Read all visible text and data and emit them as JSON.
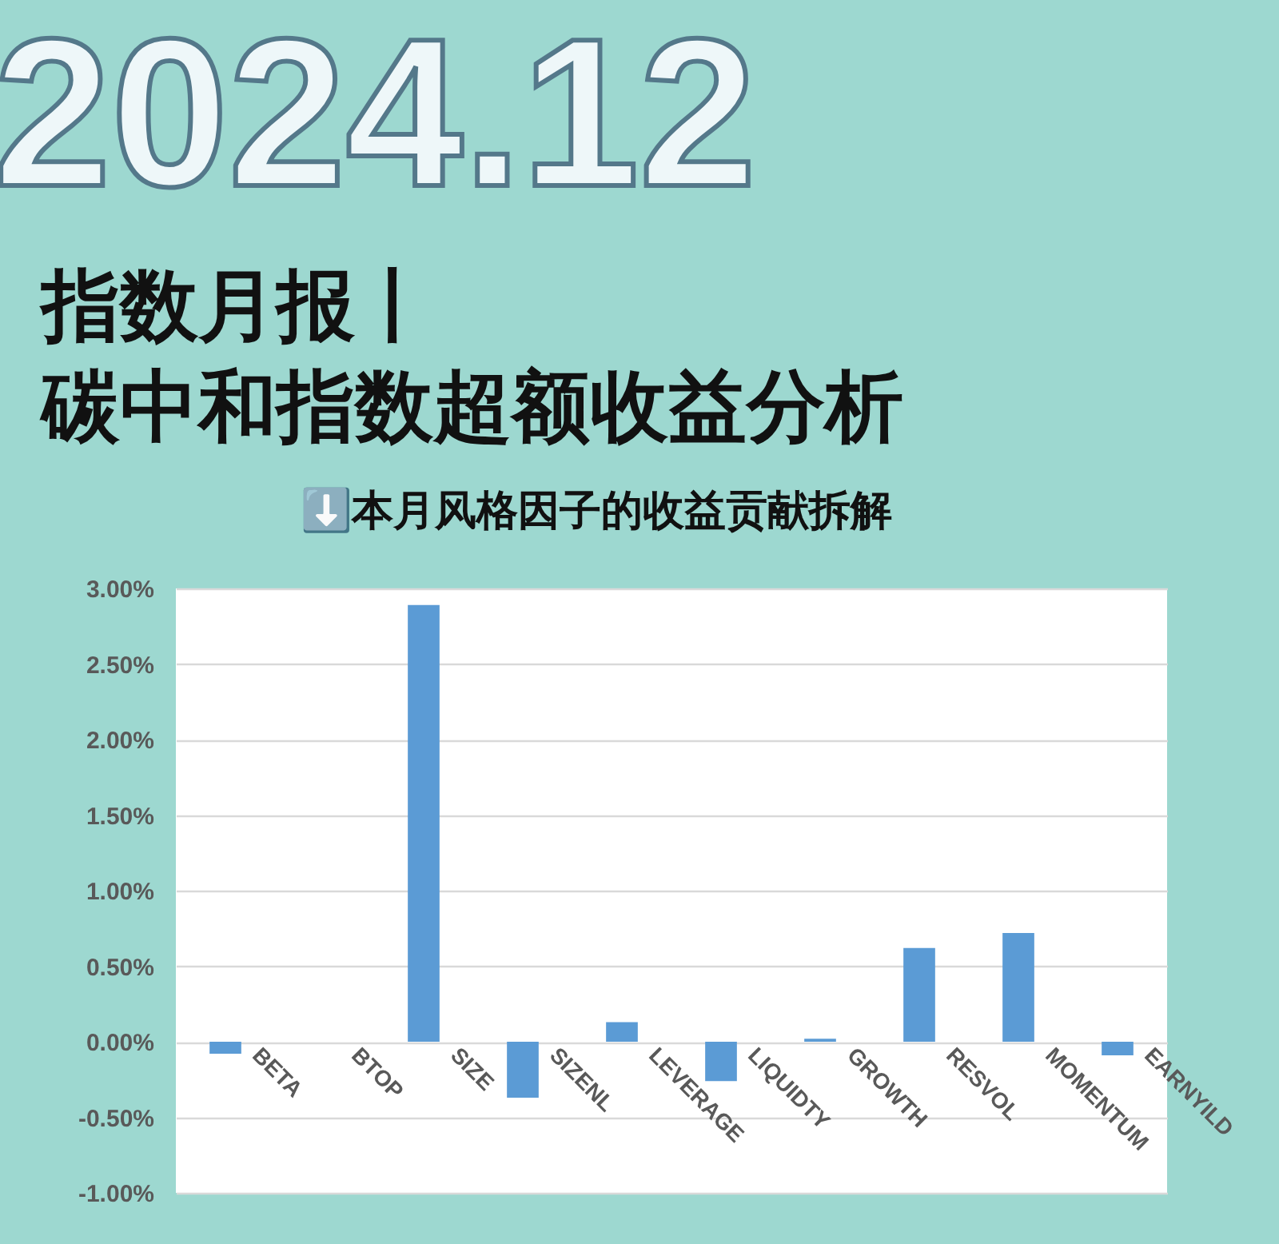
{
  "chart_data": {
    "type": "bar",
    "title": [
      "指数月报丨",
      "碳中和指数超额收益分析"
    ],
    "subtitle": "⬇️本月风格因子的收益贡献拆解",
    "annotations": [
      "2024.12"
    ],
    "categories": [
      "BETA",
      "BTOP",
      "SIZE",
      "SIZENL",
      "LEVERAGE",
      "LIQUIDTY",
      "GROWTH",
      "RESVOL",
      "MOMENTUM",
      "EARNYILD"
    ],
    "values": [
      -0.08,
      0,
      2.89,
      -0.37,
      0.13,
      -0.26,
      0.02,
      0.62,
      0.72,
      -0.09
    ],
    "color": "#5b9bd5",
    "ylim": [
      -1,
      3
    ],
    "yticks": [
      {
        "value": -1,
        "label": "-1.00%"
      },
      {
        "value": -0.5,
        "label": "-0.50%"
      },
      {
        "value": 0,
        "label": "0.00%"
      },
      {
        "value": 0.5,
        "label": "0.50%"
      },
      {
        "value": 1,
        "label": "1.00%"
      },
      {
        "value": 1.5,
        "label": "1.50%"
      },
      {
        "value": 2,
        "label": "2.00%"
      },
      {
        "value": 2.5,
        "label": "2.50%"
      },
      {
        "value": 3,
        "label": "3.00%"
      }
    ],
    "grid": "y"
  }
}
